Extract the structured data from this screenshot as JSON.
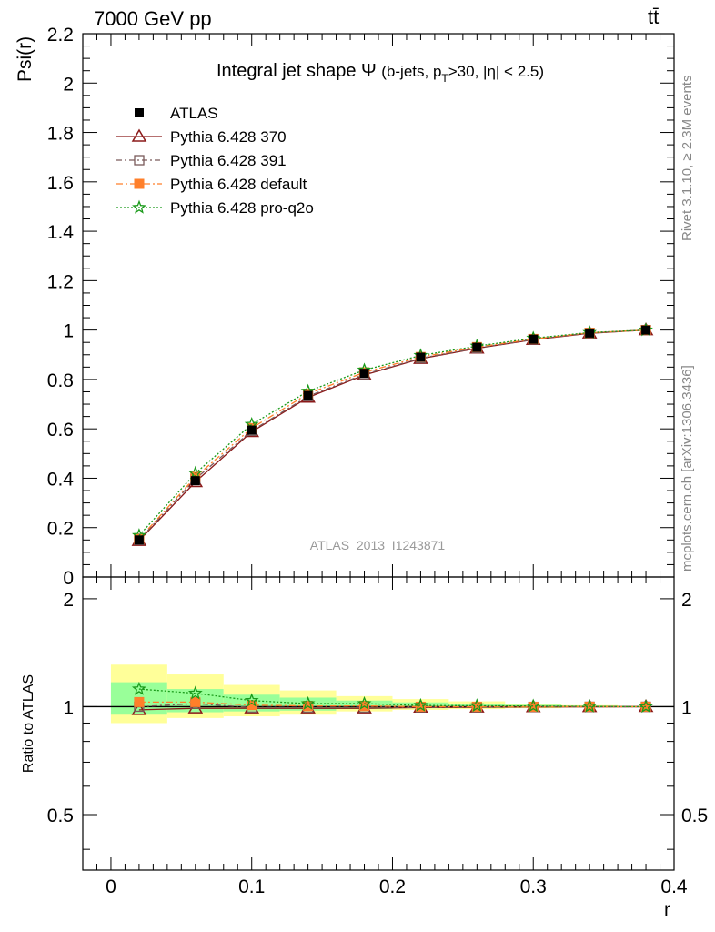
{
  "header": {
    "energy_label": "7000 GeV pp",
    "process_label": "tt̄"
  },
  "side_labels": {
    "rivet": "Rivet 3.1.10, ≥ 2.3M events",
    "mcplots": "mcplots.cern.ch [arXiv:1306.3436]"
  },
  "chart_data": {
    "type": "line",
    "title_main": "Integral jet shape",
    "title_symbol": "Ψ",
    "title_sub_a": "(b-jets, p",
    "title_sub_sub": "T",
    "title_sub_b": ">30, |η| < 2.5)",
    "ylabel": "Psi(r)",
    "xlabel": "r",
    "ratio_ylabel": "Ratio to ATLAS",
    "watermark": "ATLAS_2013_I1243871",
    "xlim": [
      -0.02,
      0.4
    ],
    "ylim": [
      0,
      2.2
    ],
    "ratio_ylim": [
      0.35,
      2.3
    ],
    "x_ticks": [
      {
        "v": 0,
        "label": "0"
      },
      {
        "v": 0.1,
        "label": "0.1"
      },
      {
        "v": 0.2,
        "label": "0.2"
      },
      {
        "v": 0.3,
        "label": "0.3"
      },
      {
        "v": 0.4,
        "label": "0.4"
      }
    ],
    "y_ticks": [
      {
        "v": 0,
        "label": "0"
      },
      {
        "v": 0.2,
        "label": "0.2"
      },
      {
        "v": 0.4,
        "label": "0.4"
      },
      {
        "v": 0.6,
        "label": "0.6"
      },
      {
        "v": 0.8,
        "label": "0.8"
      },
      {
        "v": 1.0,
        "label": "1"
      },
      {
        "v": 1.2,
        "label": "1.2"
      },
      {
        "v": 1.4,
        "label": "1.4"
      },
      {
        "v": 1.6,
        "label": "1.6"
      },
      {
        "v": 1.8,
        "label": "1.8"
      },
      {
        "v": 2.0,
        "label": "2"
      },
      {
        "v": 2.2,
        "label": "2.2"
      }
    ],
    "ratio_ticks": [
      {
        "v": 0.5,
        "label": "0.5"
      },
      {
        "v": 1,
        "label": "1"
      },
      {
        "v": 2,
        "label": "2"
      }
    ],
    "bins": [
      [
        0,
        0.04
      ],
      [
        0.04,
        0.08
      ],
      [
        0.08,
        0.12
      ],
      [
        0.12,
        0.16
      ],
      [
        0.16,
        0.2
      ],
      [
        0.2,
        0.24
      ],
      [
        0.24,
        0.28
      ],
      [
        0.28,
        0.32
      ],
      [
        0.32,
        0.36
      ],
      [
        0.36,
        0.4
      ]
    ],
    "x": [
      0.02,
      0.06,
      0.1,
      0.14,
      0.18,
      0.22,
      0.26,
      0.3,
      0.34,
      0.38
    ],
    "atlas": {
      "name": "ATLAS",
      "values": [
        0.15,
        0.39,
        0.595,
        0.735,
        0.825,
        0.89,
        0.93,
        0.963,
        0.988,
        1.0
      ],
      "band_yellow": [
        [
          0.9,
          1.31
        ],
        [
          0.93,
          1.23
        ],
        [
          0.94,
          1.15
        ],
        [
          0.95,
          1.11
        ],
        [
          0.97,
          1.07
        ],
        [
          0.98,
          1.05
        ],
        [
          0.985,
          1.035
        ],
        [
          0.99,
          1.02
        ],
        [
          0.995,
          1.01
        ],
        [
          0.997,
          1.003
        ]
      ],
      "band_green": [
        [
          0.95,
          1.17
        ],
        [
          0.965,
          1.12
        ],
        [
          0.97,
          1.08
        ],
        [
          0.975,
          1.06
        ],
        [
          0.985,
          1.04
        ],
        [
          0.99,
          1.028
        ],
        [
          0.992,
          1.018
        ],
        [
          0.995,
          1.012
        ],
        [
          0.997,
          1.006
        ],
        [
          0.998,
          1.002
        ]
      ]
    },
    "series": [
      {
        "name": "Pythia 6.428 370",
        "color": "#8b1a1a",
        "marker": "open-triangle",
        "dash": "",
        "values": [
          0.147,
          0.385,
          0.588,
          0.727,
          0.818,
          0.884,
          0.926,
          0.961,
          0.987,
          1.0
        ],
        "ratio": [
          0.98,
          0.99,
          0.99,
          0.99,
          0.99,
          0.995,
          0.996,
          0.998,
          0.999,
          1.0
        ]
      },
      {
        "name": "Pythia 6.428 391",
        "color": "#7a5a5a",
        "marker": "open-square",
        "dash": "6,3,2,3",
        "values": [
          0.15,
          0.397,
          0.592,
          0.732,
          0.821,
          0.886,
          0.927,
          0.962,
          0.988,
          1.0
        ],
        "ratio": [
          1.0,
          1.02,
          0.995,
          0.995,
          0.995,
          0.996,
          0.997,
          0.999,
          1.0,
          1.0
        ]
      },
      {
        "name": "Pythia 6.428 default",
        "color": "#ff7f2a",
        "marker": "filled-square",
        "dash": "7,3,2,3",
        "values": [
          0.154,
          0.405,
          0.603,
          0.742,
          0.829,
          0.891,
          0.931,
          0.964,
          0.989,
          1.0
        ],
        "ratio": [
          1.03,
          1.03,
          1.01,
          1.005,
          1.005,
          1.0,
          1.0,
          1.0,
          1.0,
          1.0
        ]
      },
      {
        "name": "Pythia 6.428 pro-q2o",
        "color": "#1a9a1a",
        "marker": "star",
        "dash": "2,2",
        "values": [
          0.168,
          0.42,
          0.618,
          0.752,
          0.838,
          0.897,
          0.935,
          0.967,
          0.99,
          1.0
        ],
        "ratio": [
          1.12,
          1.09,
          1.04,
          1.02,
          1.02,
          1.008,
          1.006,
          1.004,
          1.002,
          1.0
        ]
      }
    ],
    "legend_position": "top-left",
    "colors": {
      "band_yellow": "#ffff99",
      "band_green": "#99ff99"
    }
  }
}
